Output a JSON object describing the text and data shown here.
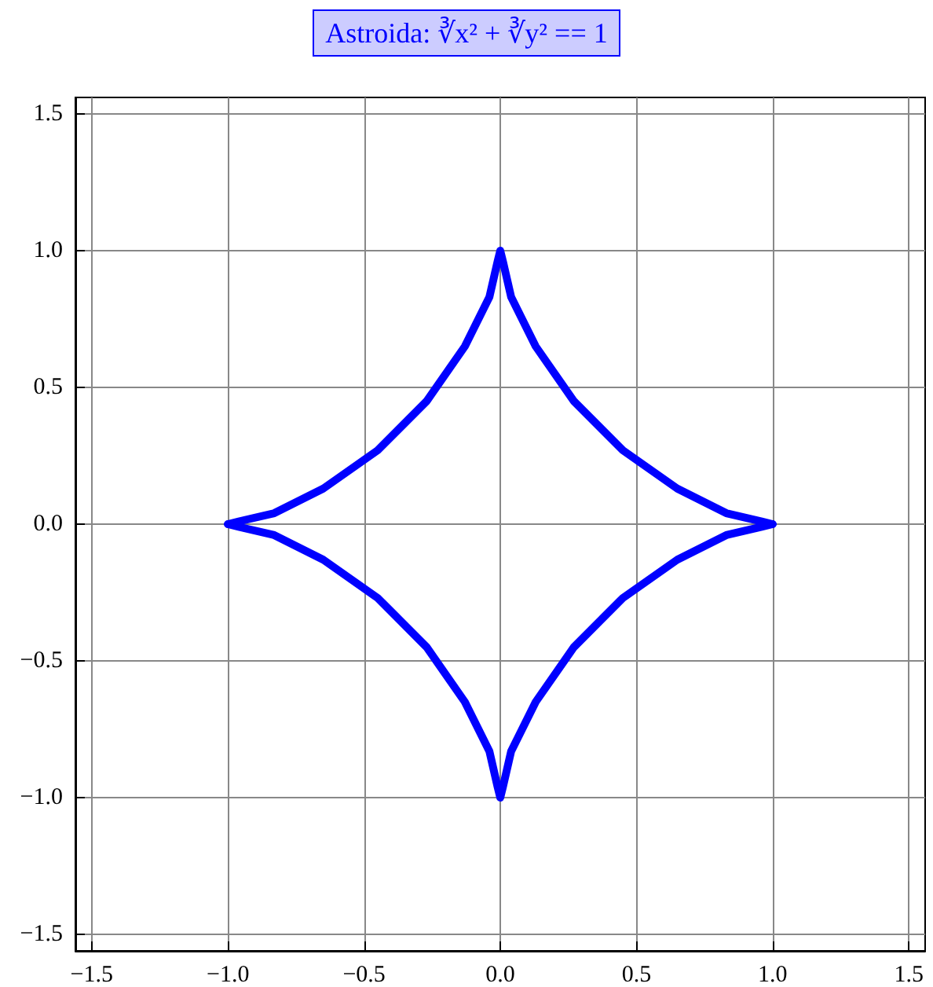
{
  "chart_data": {
    "type": "line",
    "title": "Astroida: ∛x² + ∛y² == 1",
    "series": [
      {
        "color": "#0000ff",
        "x": [
          -1,
          -0.96,
          -0.83,
          -0.65,
          -0.45,
          -0.27,
          -0.13,
          -0.04,
          -0.01,
          0,
          0.01,
          0.04,
          0.13,
          0.27,
          0.45,
          0.65,
          0.83,
          0.96,
          1
        ],
        "values": [
          0,
          0.01,
          0.04,
          0.13,
          0.27,
          0.45,
          0.65,
          0.83,
          0.96,
          1,
          0.96,
          0.83,
          0.65,
          0.45,
          0.27,
          0.13,
          0.04,
          0.01,
          0
        ]
      },
      {
        "color": "#0000ff",
        "x": [
          -1,
          -0.96,
          -0.83,
          -0.65,
          -0.45,
          -0.27,
          -0.13,
          -0.04,
          -0.01,
          0,
          0.01,
          0.04,
          0.13,
          0.27,
          0.45,
          0.65,
          0.83,
          0.96,
          1
        ],
        "values": [
          0,
          -0.01,
          -0.04,
          -0.13,
          -0.27,
          -0.45,
          -0.65,
          -0.83,
          -0.96,
          -1,
          -0.96,
          -0.83,
          -0.65,
          -0.45,
          -0.27,
          -0.13,
          -0.04,
          -0.01,
          0
        ]
      }
    ],
    "xlim": [
      -1.56,
      1.56
    ],
    "ylim": [
      -1.56,
      1.56
    ],
    "xticks": [
      {
        "value": -1.5,
        "label": "−1.5"
      },
      {
        "value": -1,
        "label": "−1.0"
      },
      {
        "value": -0.5,
        "label": "−0.5"
      },
      {
        "value": 0,
        "label": "0.0"
      },
      {
        "value": 0.5,
        "label": "0.5"
      },
      {
        "value": 1,
        "label": "1.0"
      },
      {
        "value": 1.5,
        "label": "1.5"
      }
    ],
    "yticks": [
      {
        "value": -1.5,
        "label": "−1.5"
      },
      {
        "value": -1,
        "label": "−1.0"
      },
      {
        "value": -0.5,
        "label": "−0.5"
      },
      {
        "value": 0,
        "label": "0.0"
      },
      {
        "value": 0.5,
        "label": "0.5"
      },
      {
        "value": 1,
        "label": "1.0"
      },
      {
        "value": 1.5,
        "label": "1.5"
      }
    ],
    "grid": true,
    "marker": "none",
    "line_style": "solid"
  }
}
